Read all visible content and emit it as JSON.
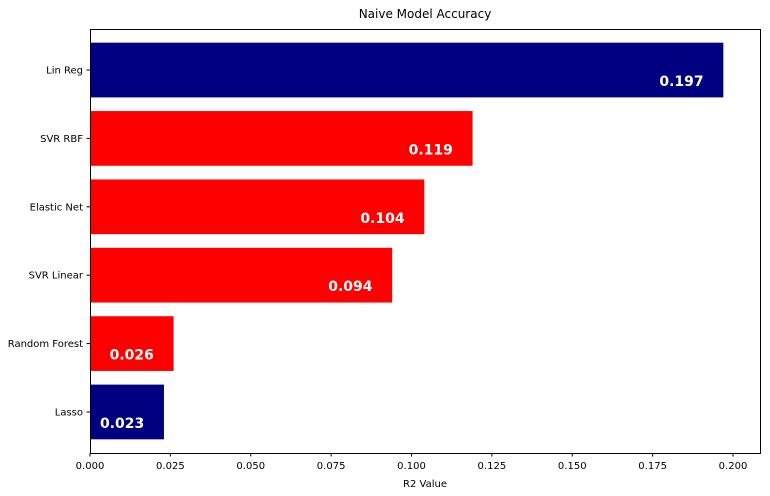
{
  "chart_data": {
    "type": "bar",
    "orientation": "horizontal",
    "title": "Naive Model Accuracy",
    "xlabel": "R2 Value",
    "ylabel": "",
    "xlim": [
      0,
      0.2084
    ],
    "xticks": [
      "0.000",
      "0.025",
      "0.050",
      "0.075",
      "0.100",
      "0.125",
      "0.150",
      "0.175",
      "0.200"
    ],
    "grid": false,
    "categories": [
      "Lasso",
      "Random Forest",
      "SVR Linear",
      "Elastic Net",
      "SVR RBF",
      "Lin Reg"
    ],
    "values": [
      0.023,
      0.026,
      0.094,
      0.104,
      0.119,
      0.197
    ],
    "value_labels": [
      "0.023",
      "0.026",
      "0.094",
      "0.104",
      "0.119",
      "0.197"
    ],
    "bar_colors": [
      "#000080",
      "#ff0000",
      "#ff0000",
      "#ff0000",
      "#ff0000",
      "#000080"
    ]
  }
}
